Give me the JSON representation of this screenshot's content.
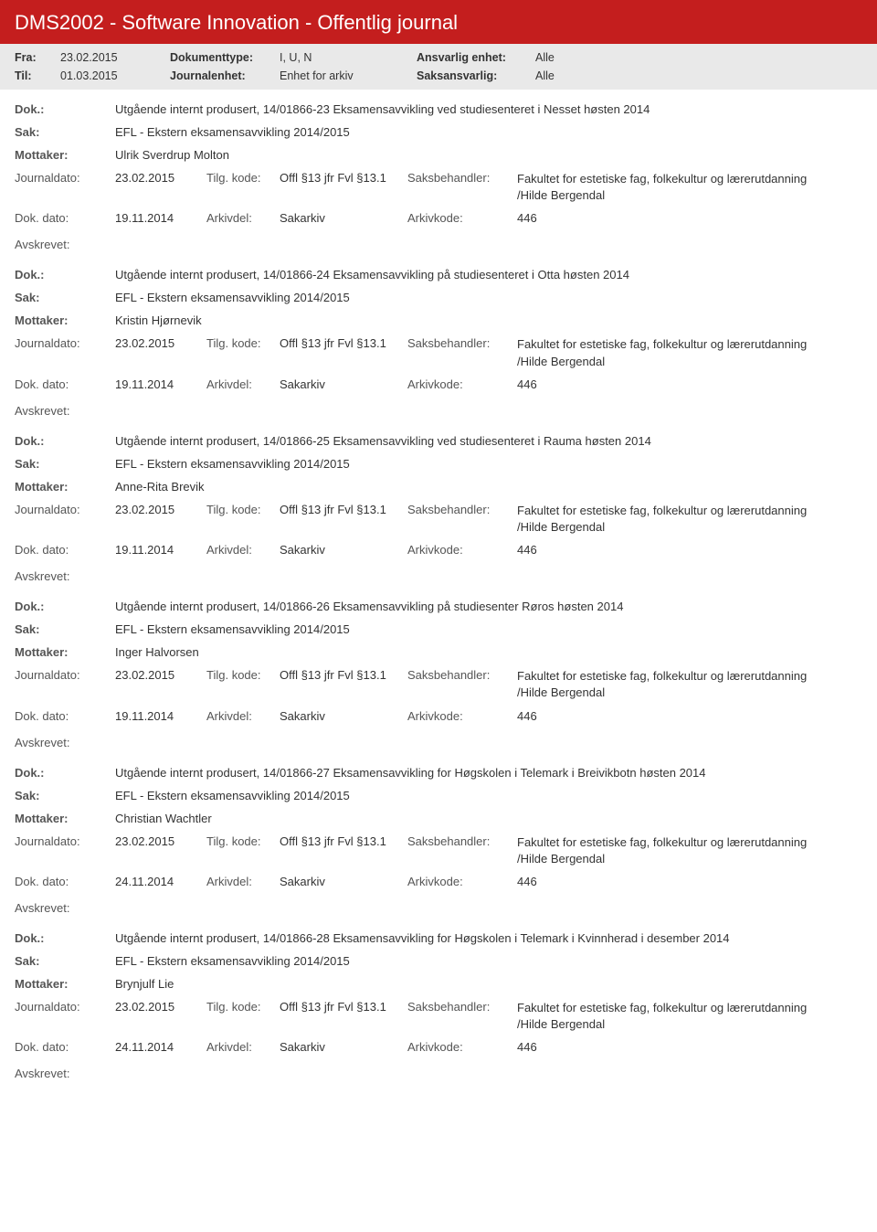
{
  "header": {
    "title": "DMS2002 - Software Innovation - Offentlig journal"
  },
  "filter": {
    "fra_label": "Fra:",
    "fra_value": "23.02.2015",
    "til_label": "Til:",
    "til_value": "01.03.2015",
    "doktype_label": "Dokumenttype:",
    "doktype_value": "I, U, N",
    "journalenhet_label": "Journalenhet:",
    "journalenhet_value": "Enhet for arkiv",
    "ansvarlig_label": "Ansvarlig enhet:",
    "ansvarlig_value": "Alle",
    "saksansvarlig_label": "Saksansvarlig:",
    "saksansvarlig_value": "Alle"
  },
  "labels": {
    "dok": "Dok.:",
    "sak": "Sak:",
    "mottaker": "Mottaker:",
    "journaldato": "Journaldato:",
    "tilgkode": "Tilg. kode:",
    "saksbehandler": "Saksbehandler:",
    "dokdato": "Dok. dato:",
    "arkivdel": "Arkivdel:",
    "arkivkode": "Arkivkode:",
    "avskrevet": "Avskrevet:"
  },
  "entries": [
    {
      "dok": "Utgående internt produsert, 14/01866-23 Eksamensavvikling ved studiesenteret i Nesset høsten 2014",
      "sak": "EFL - Ekstern eksamensavvikling 2014/2015",
      "mottaker": "Ulrik Sverdrup Molton",
      "journaldato": "23.02.2015",
      "tilgkode": "Offl §13 jfr Fvl §13.1",
      "saksbehandler": "Fakultet for estetiske fag, folkekultur og lærerutdanning",
      "saksbehandler2": "/Hilde Bergendal",
      "dokdato": "19.11.2014",
      "arkivdel": "Sakarkiv",
      "arkivkode": "446"
    },
    {
      "dok": "Utgående internt produsert, 14/01866-24 Eksamensavvikling på studiesenteret i Otta høsten 2014",
      "sak": "EFL - Ekstern eksamensavvikling 2014/2015",
      "mottaker": "Kristin Hjørnevik",
      "journaldato": "23.02.2015",
      "tilgkode": "Offl §13 jfr Fvl §13.1",
      "saksbehandler": "Fakultet for estetiske fag, folkekultur og lærerutdanning",
      "saksbehandler2": "/Hilde Bergendal",
      "dokdato": "19.11.2014",
      "arkivdel": "Sakarkiv",
      "arkivkode": "446"
    },
    {
      "dok": "Utgående internt produsert, 14/01866-25 Eksamensavvikling ved studiesenteret i Rauma høsten 2014",
      "sak": "EFL - Ekstern eksamensavvikling 2014/2015",
      "mottaker": "Anne-Rita  Brevik",
      "journaldato": "23.02.2015",
      "tilgkode": "Offl §13 jfr Fvl §13.1",
      "saksbehandler": "Fakultet for estetiske fag, folkekultur og lærerutdanning",
      "saksbehandler2": "/Hilde Bergendal",
      "dokdato": "19.11.2014",
      "arkivdel": "Sakarkiv",
      "arkivkode": "446"
    },
    {
      "dok": "Utgående internt produsert, 14/01866-26 Eksamensavvikling på studiesenter Røros høsten 2014",
      "sak": "EFL - Ekstern eksamensavvikling 2014/2015",
      "mottaker": "Inger Halvorsen",
      "journaldato": "23.02.2015",
      "tilgkode": "Offl §13 jfr Fvl §13.1",
      "saksbehandler": "Fakultet for estetiske fag, folkekultur og lærerutdanning",
      "saksbehandler2": "/Hilde Bergendal",
      "dokdato": "19.11.2014",
      "arkivdel": "Sakarkiv",
      "arkivkode": "446"
    },
    {
      "dok": "Utgående internt produsert, 14/01866-27 Eksamensavvikling for Høgskolen i Telemark i Breivikbotn høsten 2014",
      "sak": "EFL - Ekstern eksamensavvikling 2014/2015",
      "mottaker": "Christian Wachtler",
      "journaldato": "23.02.2015",
      "tilgkode": "Offl §13 jfr Fvl §13.1",
      "saksbehandler": "Fakultet for estetiske fag, folkekultur og lærerutdanning",
      "saksbehandler2": "/Hilde Bergendal",
      "dokdato": "24.11.2014",
      "arkivdel": "Sakarkiv",
      "arkivkode": "446"
    },
    {
      "dok": "Utgående internt produsert, 14/01866-28 Eksamensavvikling for Høgskolen i Telemark i Kvinnherad i desember 2014",
      "sak": "EFL - Ekstern eksamensavvikling 2014/2015",
      "mottaker": "Brynjulf Lie",
      "journaldato": "23.02.2015",
      "tilgkode": "Offl §13 jfr Fvl §13.1",
      "saksbehandler": "Fakultet for estetiske fag, folkekultur og lærerutdanning",
      "saksbehandler2": "/Hilde Bergendal",
      "dokdato": "24.11.2014",
      "arkivdel": "Sakarkiv",
      "arkivkode": "446"
    }
  ]
}
